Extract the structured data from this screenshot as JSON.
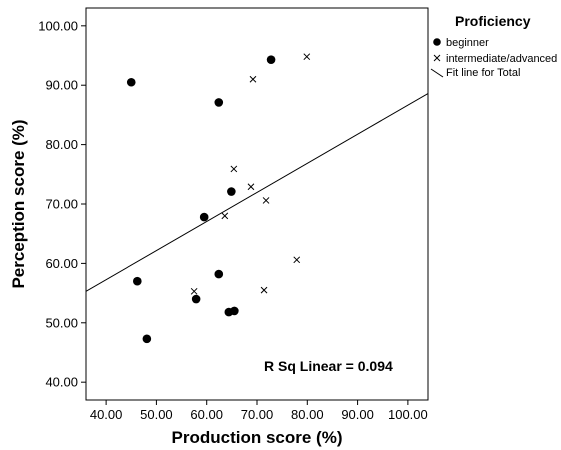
{
  "chart_data": {
    "type": "scatter",
    "xlabel": "Production score (%)",
    "ylabel": "Perception score (%)",
    "xlim": [
      36,
      104
    ],
    "ylim": [
      37,
      103
    ],
    "xticks": [
      "40.00",
      "50.00",
      "60.00",
      "70.00",
      "80.00",
      "90.00",
      "100.00"
    ],
    "yticks": [
      "40.00",
      "50.00",
      "60.00",
      "70.00",
      "80.00",
      "90.00",
      "100.00"
    ],
    "xtick_values": [
      40,
      50,
      60,
      70,
      80,
      90,
      100
    ],
    "ytick_values": [
      40,
      50,
      60,
      70,
      80,
      90,
      100
    ],
    "legend": {
      "title": "Proficiency",
      "placement": "right, outside plot",
      "entries": [
        "beginner",
        "intermediate/advanced",
        "Fit line for Total"
      ]
    },
    "series": [
      {
        "name": "beginner",
        "marker": "filled-circle",
        "points": [
          {
            "x": 45.0,
            "y": 90.5
          },
          {
            "x": 46.2,
            "y": 57.0
          },
          {
            "x": 48.1,
            "y": 47.3
          },
          {
            "x": 57.9,
            "y": 54.0
          },
          {
            "x": 59.5,
            "y": 67.8
          },
          {
            "x": 62.4,
            "y": 87.1
          },
          {
            "x": 62.4,
            "y": 58.2
          },
          {
            "x": 64.4,
            "y": 51.8
          },
          {
            "x": 64.9,
            "y": 72.1
          },
          {
            "x": 65.5,
            "y": 52.0
          },
          {
            "x": 72.8,
            "y": 94.3
          }
        ]
      },
      {
        "name": "intermediate/advanced",
        "marker": "x-cross",
        "points": [
          {
            "x": 57.5,
            "y": 55.3
          },
          {
            "x": 63.6,
            "y": 68.0
          },
          {
            "x": 65.4,
            "y": 75.9
          },
          {
            "x": 68.8,
            "y": 72.9
          },
          {
            "x": 69.2,
            "y": 91.0
          },
          {
            "x": 71.4,
            "y": 55.5
          },
          {
            "x": 71.8,
            "y": 70.6
          },
          {
            "x": 77.9,
            "y": 60.6
          },
          {
            "x": 79.9,
            "y": 94.8
          }
        ]
      }
    ],
    "fit_line": {
      "name": "Fit line for Total",
      "x": [
        36,
        104
      ],
      "y": [
        55.3,
        88.6
      ]
    },
    "annotation": "R Sq Linear = 0.094",
    "grid": false
  }
}
